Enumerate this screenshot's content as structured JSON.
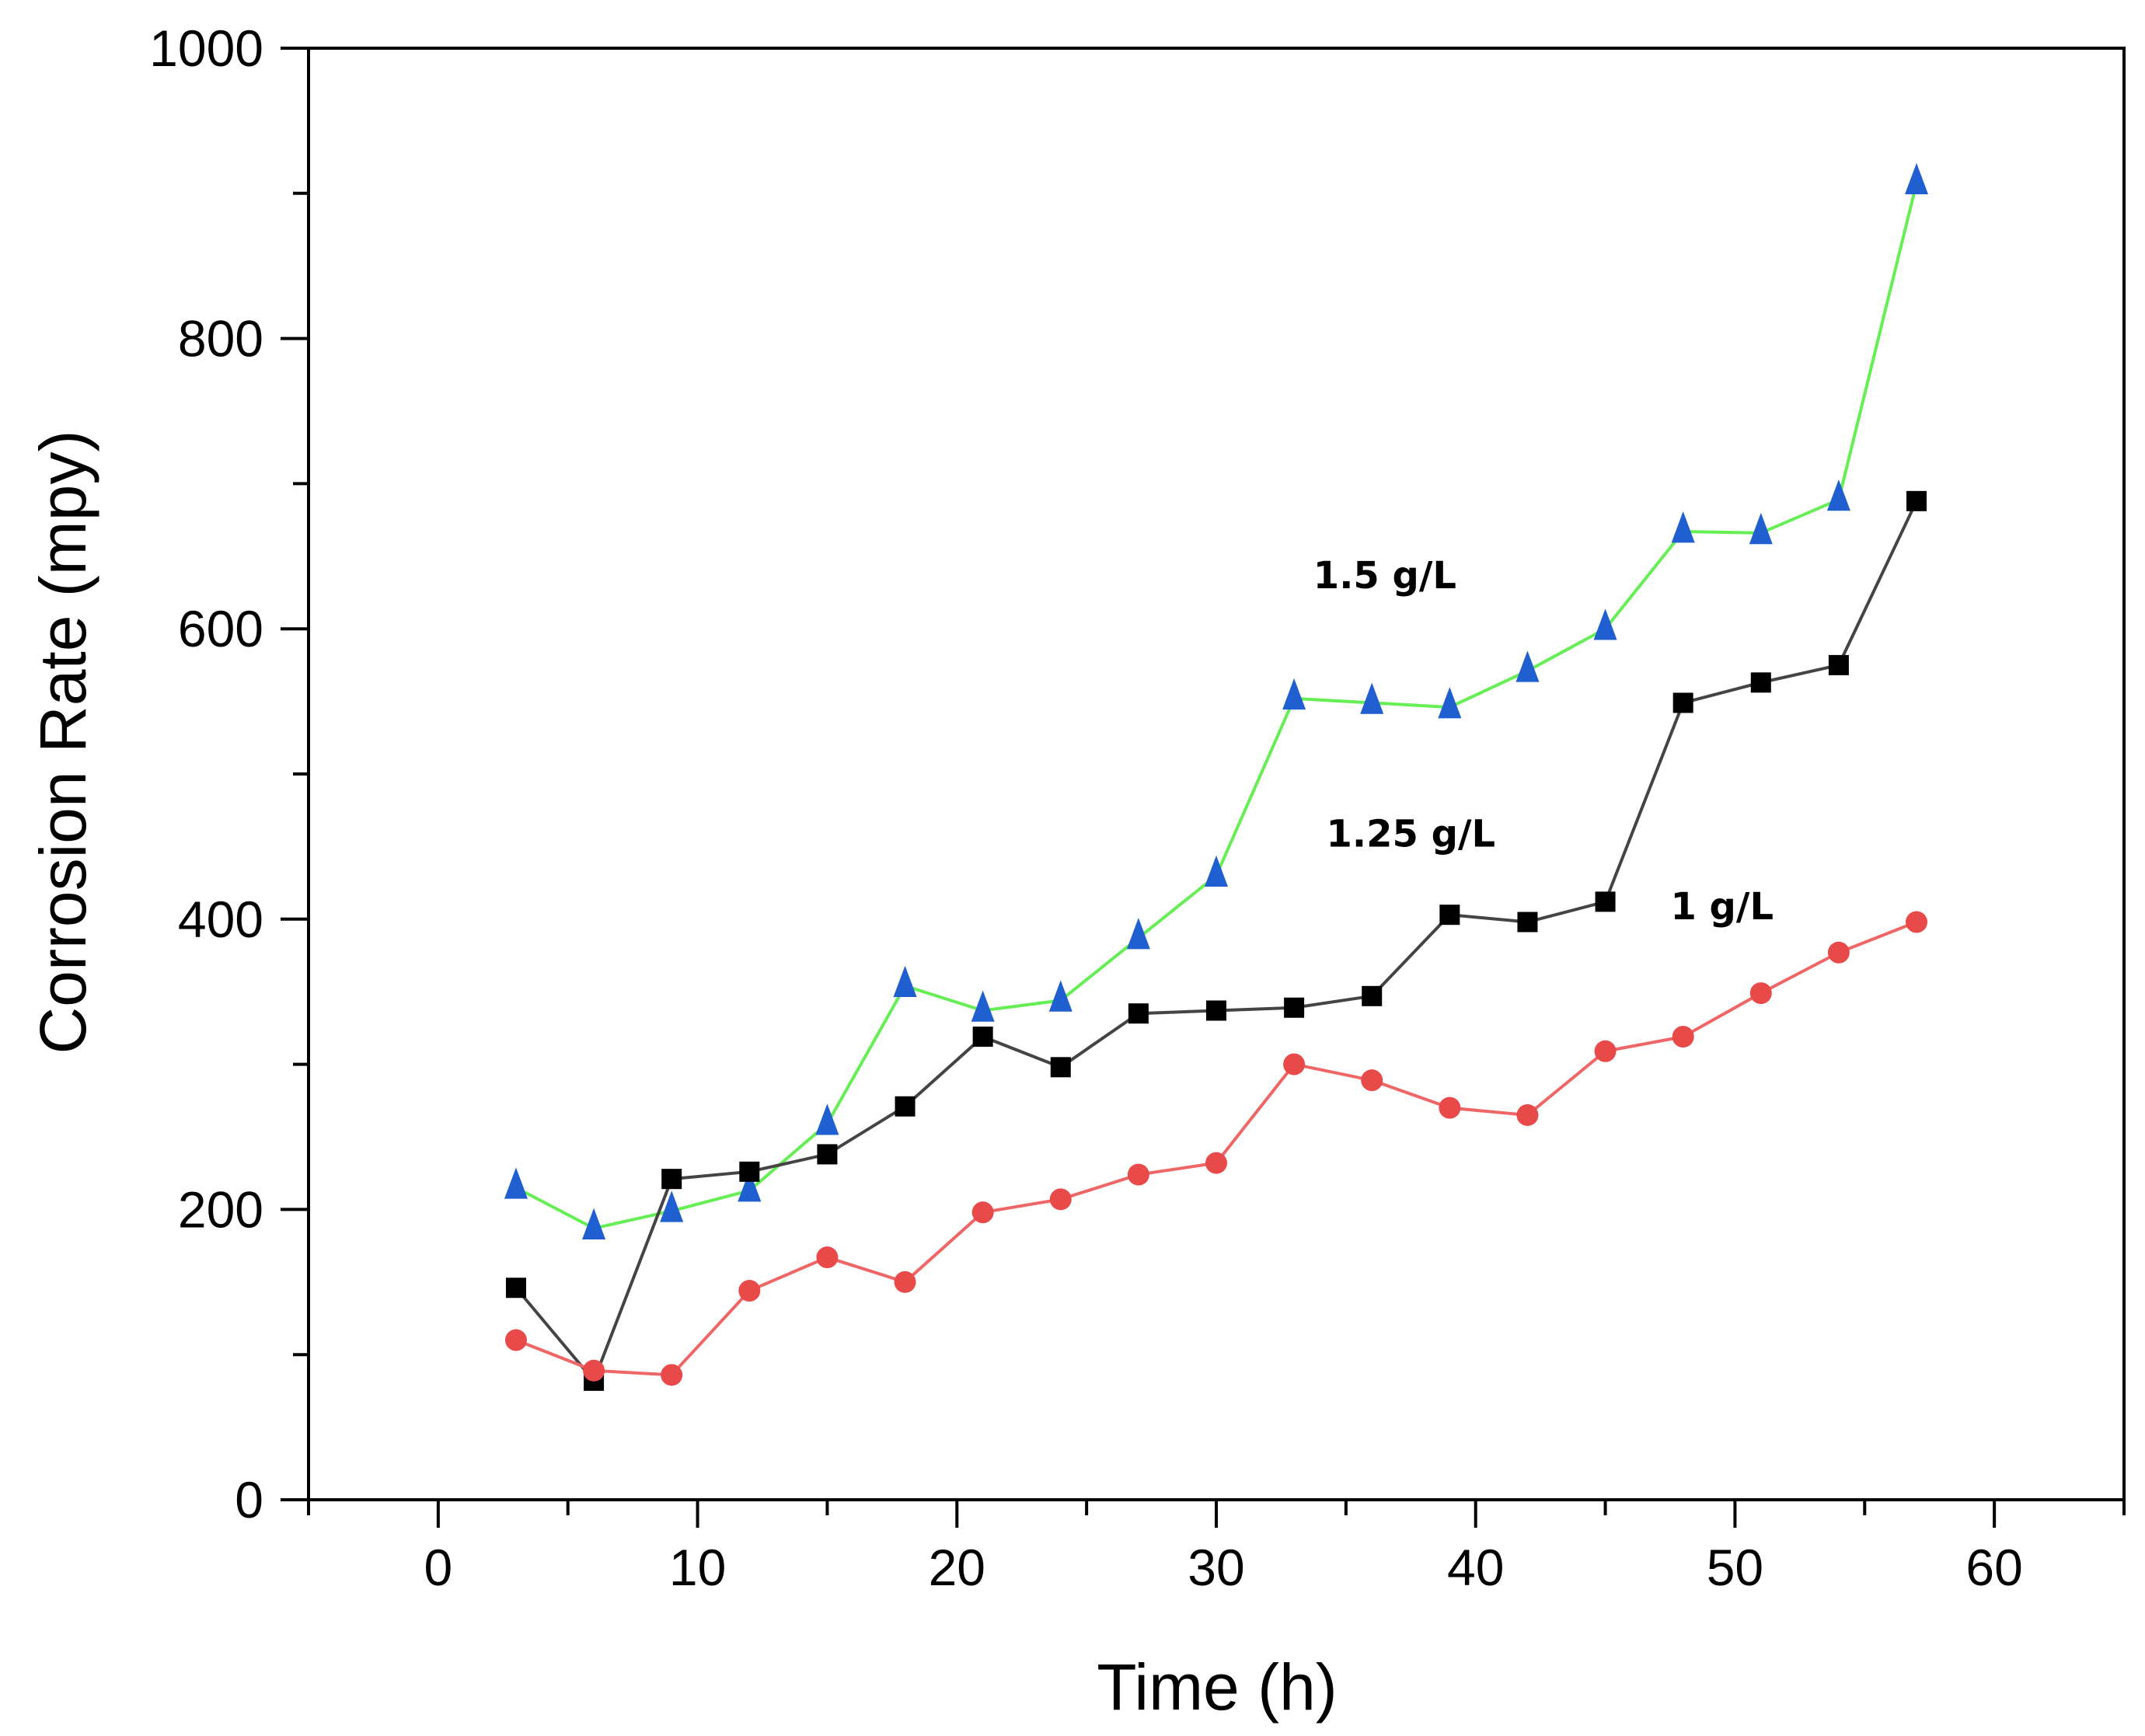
{
  "chart_data": {
    "type": "line",
    "title": "",
    "xlabel": "Time (h)",
    "ylabel": "Corrosion Rate (mpy)",
    "xlim": [
      -5,
      65
    ],
    "ylim": [
      0,
      1000
    ],
    "x_ticks": [
      0,
      10,
      20,
      30,
      40,
      50,
      60
    ],
    "y_ticks": [
      0,
      200,
      400,
      600,
      800,
      1000
    ],
    "grid": false,
    "legend": "none",
    "x": [
      3,
      6,
      9,
      12,
      15,
      18,
      21,
      24,
      27,
      30,
      33,
      36,
      39,
      42,
      45,
      48,
      51,
      54,
      57
    ],
    "series": [
      {
        "name": "1.5 g/L",
        "line_color": "#66ee55",
        "marker_color": "#1f5fcf",
        "marker": "triangle",
        "values": [
          215,
          187,
          199,
          213,
          259,
          354,
          337,
          344,
          387,
          430,
          552,
          549,
          546,
          571,
          600,
          667,
          666,
          689,
          907
        ]
      },
      {
        "name": "1.25 g/L",
        "line_color": "#444444",
        "marker_color": "#000000",
        "marker": "square",
        "values": [
          146,
          82,
          221,
          226,
          238,
          271,
          319,
          298,
          335,
          337,
          339,
          347,
          403,
          398,
          412,
          549,
          563,
          575,
          688
        ]
      },
      {
        "name": "1 g/L",
        "line_color": "#ee6666",
        "marker_color": "#e84a4a",
        "marker": "circle",
        "values": [
          110,
          89,
          86,
          144,
          167,
          150,
          198,
          207,
          224,
          232,
          300,
          289,
          270,
          265,
          309,
          319,
          349,
          377,
          398
        ]
      }
    ],
    "annotations": [
      {
        "text": "1.5 g/L",
        "x": 36.5,
        "y": 628
      },
      {
        "text": "1.25 g/L",
        "x": 37.5,
        "y": 450
      },
      {
        "text": "1 g/L",
        "x": 49.5,
        "y": 400
      }
    ]
  }
}
